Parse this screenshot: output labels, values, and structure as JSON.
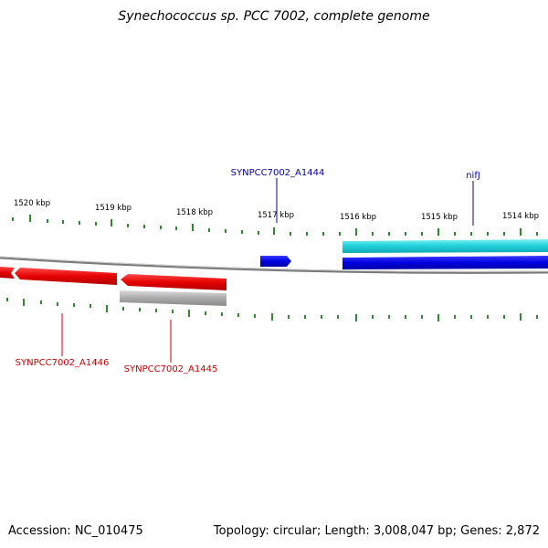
{
  "title": "Synechococcus sp. PCC 7002, complete genome",
  "footer": {
    "accession": "Accession: NC_010475",
    "summary": "Topology: circular; Length: 3,008,047 bp; Genes: 2,872"
  },
  "scale_labels": [
    "1520 kbp",
    "1519 kbp",
    "1518 kbp",
    "1517 kbp",
    "1516 kbp",
    "1515 kbp",
    "1514 kbp"
  ],
  "genes": {
    "synpcc7002_a1444": "SYNPCC7002_A1444",
    "nifj": "nifJ",
    "synpcc7002_a1446": "SYNPCC7002_A1446",
    "synpcc7002_a1445": "SYNPCC7002_A1445"
  },
  "colors": {
    "forward_strand": "#0000e0",
    "forward_feature": "#22d3dd",
    "reverse_strand": "#e60000",
    "reverse_feature": "#a9a9a9",
    "backbone": "#808080",
    "ticks": "#2e8b2e",
    "label_forward": "#0000aa",
    "label_reverse": "#cc0000"
  }
}
